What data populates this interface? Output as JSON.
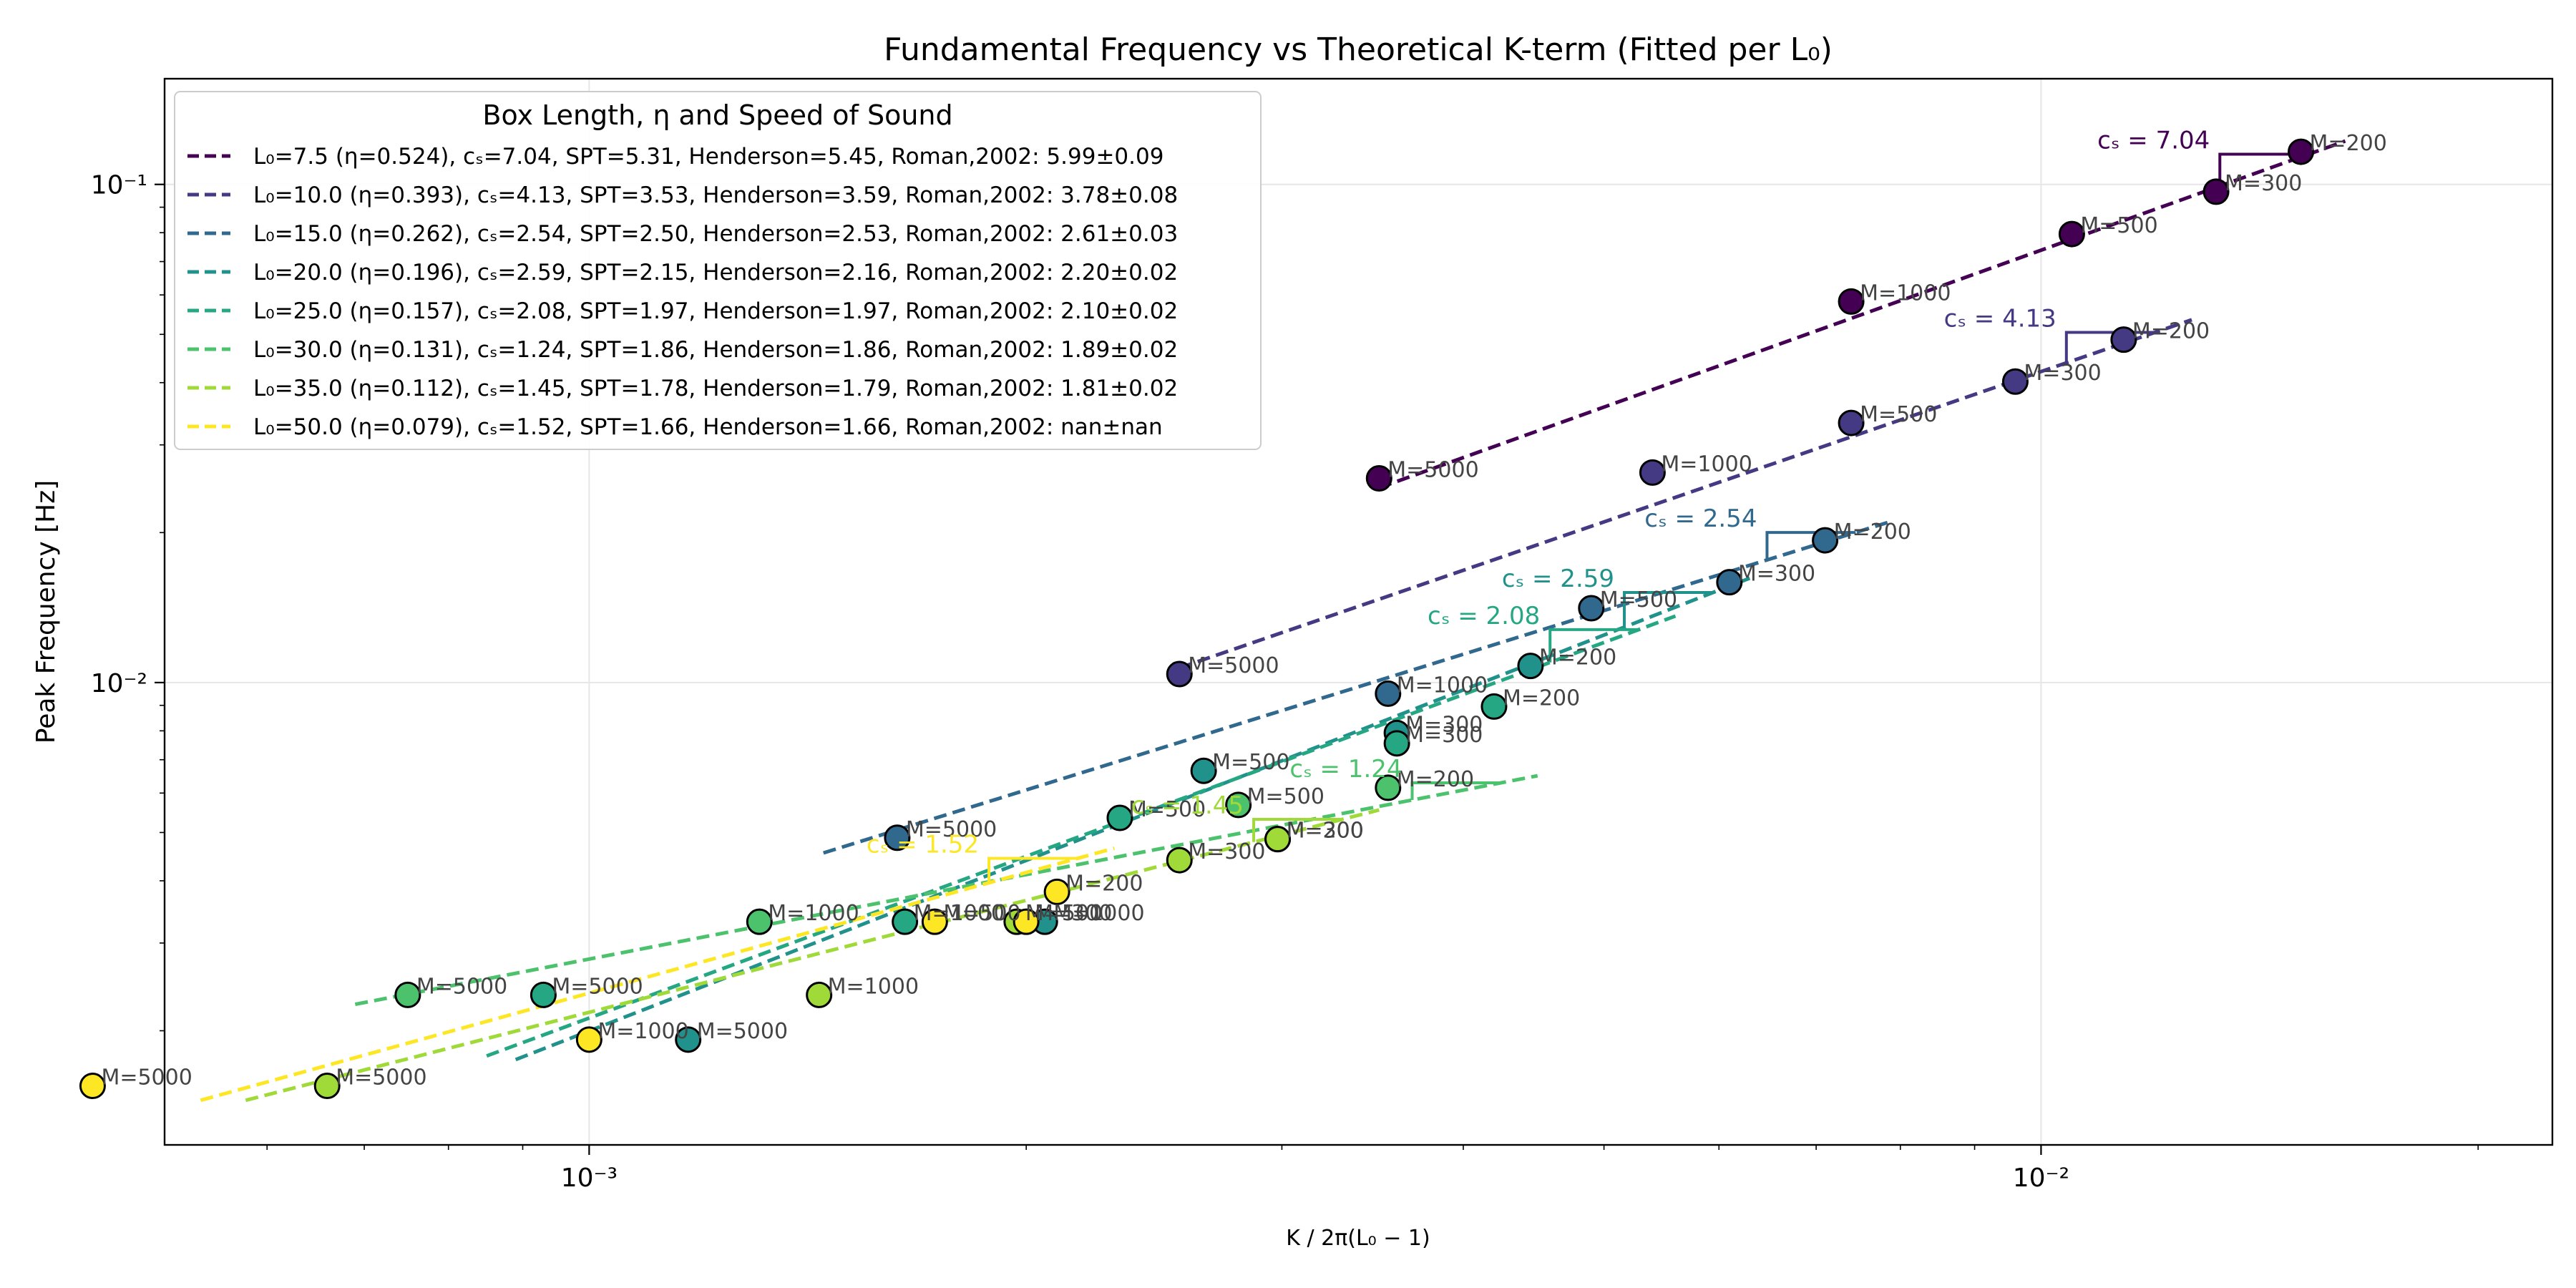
{
  "chart_data": {
    "type": "scatter",
    "title": "Fundamental Frequency vs Theoretical K-term (Fitted per L₀)",
    "xlabel": "K / 2π(L₀ − 1)",
    "ylabel": "Peak Frequency [Hz]",
    "xscale": "log",
    "yscale": "log",
    "xlim": [
      0.00051,
      0.0225
    ],
    "ylim": [
      0.00118,
      0.163
    ],
    "x_ticks": [
      {
        "value": 0.001,
        "label": "10⁻³"
      },
      {
        "value": 0.01,
        "label": "10⁻²"
      }
    ],
    "y_ticks": [
      {
        "value": 0.01,
        "label": "10⁻²"
      },
      {
        "value": 0.1,
        "label": "10⁻¹"
      }
    ],
    "grid": true,
    "legend": {
      "title": "Box Length, η and Speed of Sound",
      "position": "top-left"
    },
    "series": [
      {
        "name": "L₀=7.5 (η=0.524), cₛ=7.04, SPT=5.31, Henderson=5.45, Roman,2002: 5.99±0.09",
        "color": "#440154",
        "fit": {
          "x": [
            0.0035,
            0.0162
          ],
          "y": [
            0.0246,
            0.1222
          ]
        },
        "slope_label": "cₛ = 7.04",
        "points": [
          {
            "x": 0.0035,
            "y": 0.0257,
            "label": "M=5000"
          },
          {
            "x": 0.0074,
            "y": 0.0582,
            "label": "M=1000"
          },
          {
            "x": 0.0105,
            "y": 0.0795,
            "label": "M=500"
          },
          {
            "x": 0.0132,
            "y": 0.0967,
            "label": "M=300"
          },
          {
            "x": 0.0151,
            "y": 0.1163,
            "label": "M=200"
          }
        ]
      },
      {
        "name": "L₀=10.0 (η=0.393), cₛ=4.13, SPT=3.53, Henderson=3.59, Roman,2002: 3.78±0.08",
        "color": "#443983",
        "fit": {
          "x": [
            0.00255,
            0.0127
          ],
          "y": [
            0.0107,
            0.0535
          ]
        },
        "slope_label": "cₛ = 4.13",
        "points": [
          {
            "x": 0.00255,
            "y": 0.0104,
            "label": "M=5000"
          },
          {
            "x": 0.0054,
            "y": 0.0264,
            "label": "M=1000"
          },
          {
            "x": 0.0074,
            "y": 0.0332,
            "label": "M=500"
          },
          {
            "x": 0.0096,
            "y": 0.0402,
            "label": "M=300"
          },
          {
            "x": 0.0114,
            "y": 0.0488,
            "label": "M=200"
          }
        ]
      },
      {
        "name": "L₀=15.0 (η=0.262), cₛ=2.54, SPT=2.50, Henderson=2.53, Roman,2002: 2.61±0.03",
        "color": "#31688e",
        "fit": {
          "x": [
            0.00145,
            0.0079
          ],
          "y": [
            0.00455,
            0.0211
          ]
        },
        "slope_label": "cₛ = 2.54",
        "points": [
          {
            "x": 0.00163,
            "y": 0.00488,
            "label": "M=5000"
          },
          {
            "x": 0.00355,
            "y": 0.0095,
            "label": "M=1000"
          },
          {
            "x": 0.0049,
            "y": 0.0141,
            "label": "M=500"
          },
          {
            "x": 0.0061,
            "y": 0.0159,
            "label": "M=300"
          },
          {
            "x": 0.0071,
            "y": 0.0193,
            "label": "M=200"
          }
        ]
      },
      {
        "name": "L₀=20.0 (η=0.196), cₛ=2.59, SPT=2.15, Henderson=2.16, Roman,2002: 2.20±0.02",
        "color": "#21918c",
        "fit": {
          "x": [
            0.00089,
            0.0063
          ],
          "y": [
            0.00175,
            0.0162
          ]
        },
        "slope_label": "cₛ = 2.59",
        "points": [
          {
            "x": 0.00117,
            "y": 0.00192,
            "label": "M=5000"
          },
          {
            "x": 0.00206,
            "y": 0.00331,
            "label": "M=1000"
          },
          {
            "x": 0.00265,
            "y": 0.00665,
            "label": "M=500"
          },
          {
            "x": 0.0036,
            "y": 0.00792,
            "label": "M=300"
          },
          {
            "x": 0.00445,
            "y": 0.0108,
            "label": "M=200"
          }
        ]
      },
      {
        "name": "L₀=25.0 (η=0.157), cₛ=2.08, SPT=1.97, Henderson=1.97, Roman,2002: 2.10±0.02",
        "color": "#26a784",
        "fit": {
          "x": [
            0.00085,
            0.0056
          ],
          "y": [
            0.00178,
            0.0136
          ]
        },
        "slope_label": "cₛ = 2.08",
        "points": [
          {
            "x": 0.00093,
            "y": 0.00236,
            "label": "M=5000"
          },
          {
            "x": 0.00165,
            "y": 0.00331,
            "label": "M=1000"
          },
          {
            "x": 0.00232,
            "y": 0.00535,
            "label": "M=500"
          },
          {
            "x": 0.0036,
            "y": 0.00755,
            "label": "M=300"
          },
          {
            "x": 0.0042,
            "y": 0.00895,
            "label": "M=200"
          }
        ]
      },
      {
        "name": "L₀=30.0 (η=0.131), cₛ=1.24, SPT=1.86, Henderson=1.86, Roman,2002: 1.89±0.02",
        "color": "#4cc26c",
        "fit": {
          "x": [
            0.00069,
            0.0045
          ],
          "y": [
            0.00226,
            0.0065
          ]
        },
        "slope_label": "cₛ = 1.24",
        "points": [
          {
            "x": 0.00075,
            "y": 0.00236,
            "label": "M=5000"
          },
          {
            "x": 0.00131,
            "y": 0.00331,
            "label": "M=1000"
          },
          {
            "x": 0.0028,
            "y": 0.00568,
            "label": "M=500"
          },
          {
            "x": 0.00298,
            "y": 0.00485,
            "label": "M=300"
          },
          {
            "x": 0.00355,
            "y": 0.00615,
            "label": "M=200"
          }
        ]
      },
      {
        "name": "L₀=35.0 (η=0.112), cₛ=1.45, SPT=1.78, Henderson=1.79, Roman,2002: 1.81±0.02",
        "color": "#a0da39",
        "fit": {
          "x": [
            0.00058,
            0.0035
          ],
          "y": [
            0.00145,
            0.00555
          ]
        },
        "slope_label": "cₛ = 1.45",
        "points": [
          {
            "x": 0.00066,
            "y": 0.00155,
            "label": "M=5000"
          },
          {
            "x": 0.00144,
            "y": 0.00236,
            "label": "M=1000"
          },
          {
            "x": 0.00197,
            "y": 0.00331,
            "label": "M=500"
          },
          {
            "x": 0.00255,
            "y": 0.0044,
            "label": "M=300"
          },
          {
            "x": 0.00298,
            "y": 0.00485,
            "label": "M=200"
          }
        ]
      },
      {
        "name": "L₀=50.0 (η=0.079), cₛ=1.52, SPT=1.66, Henderson=1.66, Roman,2002: nan±nan",
        "color": "#fde725",
        "fit": {
          "x": [
            0.00054,
            0.0023
          ],
          "y": [
            0.00145,
            0.00465
          ]
        },
        "slope_label": "cₛ = 1.52",
        "points": [
          {
            "x": 0.000455,
            "y": 0.00155,
            "label": "M=5000"
          },
          {
            "x": 0.001,
            "y": 0.00192,
            "label": "M=1000"
          },
          {
            "x": 0.00173,
            "y": 0.00331,
            "label": "M=500"
          },
          {
            "x": 0.002,
            "y": 0.00331,
            "label": "M=300"
          },
          {
            "x": 0.0021,
            "y": 0.0038,
            "label": "M=200"
          }
        ]
      }
    ]
  }
}
